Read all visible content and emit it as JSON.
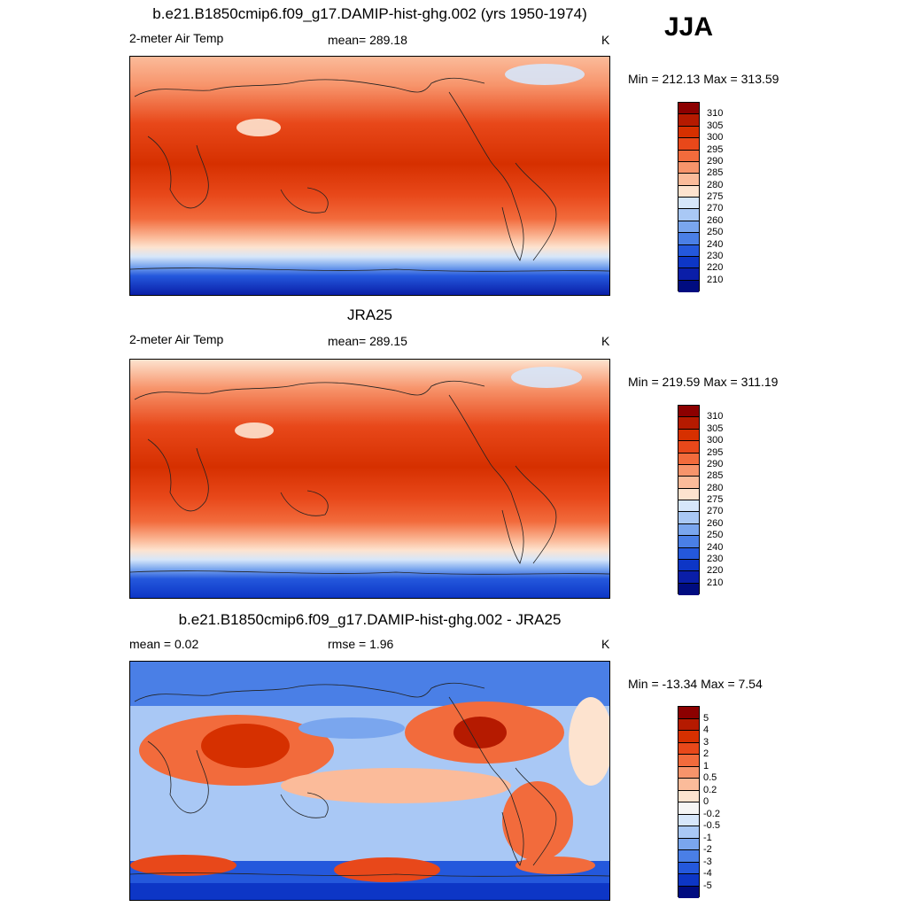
{
  "season": "JJA",
  "panels": [
    {
      "title": "b.e21.B1850cmip6.f09_g17.DAMIP-hist-ghg.002 (yrs 1950-1974)",
      "left": "2-meter Air Temp",
      "center": "mean= 289.18",
      "right": "K",
      "minmax": "Min = 212.13 Max = 313.59"
    },
    {
      "title": "JRA25",
      "left": "2-meter Air Temp",
      "center": "mean= 289.15",
      "right": "K",
      "minmax": "Min = 219.59 Max = 311.19"
    },
    {
      "title": "b.e21.B1850cmip6.f09_g17.DAMIP-hist-ghg.002 - JRA25",
      "left": "mean =   0.02",
      "center": "rmse =   1.96",
      "right": "K",
      "minmax": "Min = -13.34 Max =   7.54"
    }
  ],
  "temp_colorbar": {
    "labels": [
      "310",
      "305",
      "300",
      "295",
      "290",
      "285",
      "280",
      "275",
      "270",
      "260",
      "250",
      "240",
      "230",
      "220",
      "210"
    ],
    "colors": [
      "#8c0000",
      "#b51a00",
      "#d63000",
      "#e8481a",
      "#f26b3c",
      "#f7946b",
      "#fbbb9a",
      "#fde3cf",
      "#d6e6fa",
      "#a9c8f5",
      "#7aa6ee",
      "#4a7fe6",
      "#2458dc",
      "#0d36c6",
      "#0a1ea8",
      "#000c80"
    ]
  },
  "diff_colorbar": {
    "labels": [
      "5",
      "4",
      "3",
      "2",
      "1",
      "0.5",
      "0.2",
      "0",
      "-0.2",
      "-0.5",
      "-1",
      "-2",
      "-3",
      "-4",
      "-5"
    ],
    "colors": [
      "#8c0000",
      "#b51a00",
      "#d63000",
      "#e8481a",
      "#f26b3c",
      "#f7946b",
      "#fbbb9a",
      "#fde3cf",
      "#f5f5f5",
      "#d6e6fa",
      "#a9c8f5",
      "#7aa6ee",
      "#4a7fe6",
      "#2458dc",
      "#0d36c6",
      "#000c80"
    ]
  }
}
